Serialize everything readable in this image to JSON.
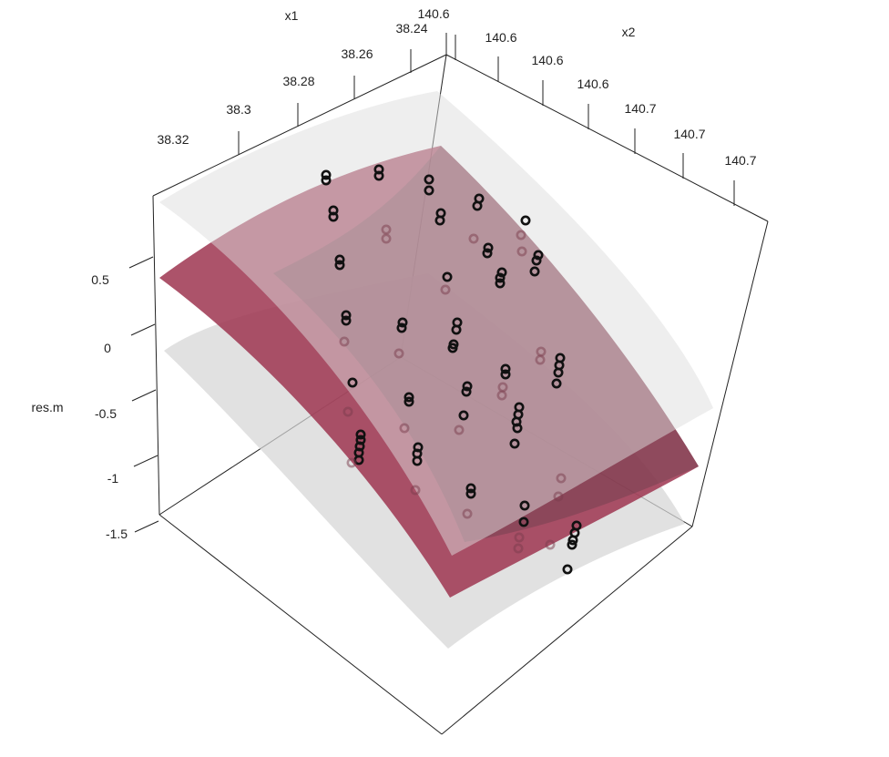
{
  "chart_data": {
    "type": "scatter-3d-surface",
    "title": "",
    "axes": {
      "x1": {
        "label": "x1",
        "ticks": [
          "38.32",
          "38.3",
          "38.28",
          "38.26",
          "38.24"
        ]
      },
      "x2": {
        "label": "x2",
        "ticks": [
          "140.6",
          "140.6",
          "140.6",
          "140.6",
          "140.7",
          "140.7",
          "140.7"
        ]
      },
      "z": {
        "label": "res.m",
        "ticks": [
          "0.5",
          "0",
          "-0.5",
          "-1",
          "-1.5"
        ],
        "range": [
          -1.5,
          0.9
        ]
      }
    },
    "surfaces": [
      {
        "role": "fit",
        "color": "#9e3550"
      },
      {
        "role": "upper-band",
        "color": "#d9d9d9"
      },
      {
        "role": "lower-band",
        "color": "#d9d9d9"
      }
    ],
    "point_color": "#111111",
    "grid": false,
    "legend": "none"
  }
}
